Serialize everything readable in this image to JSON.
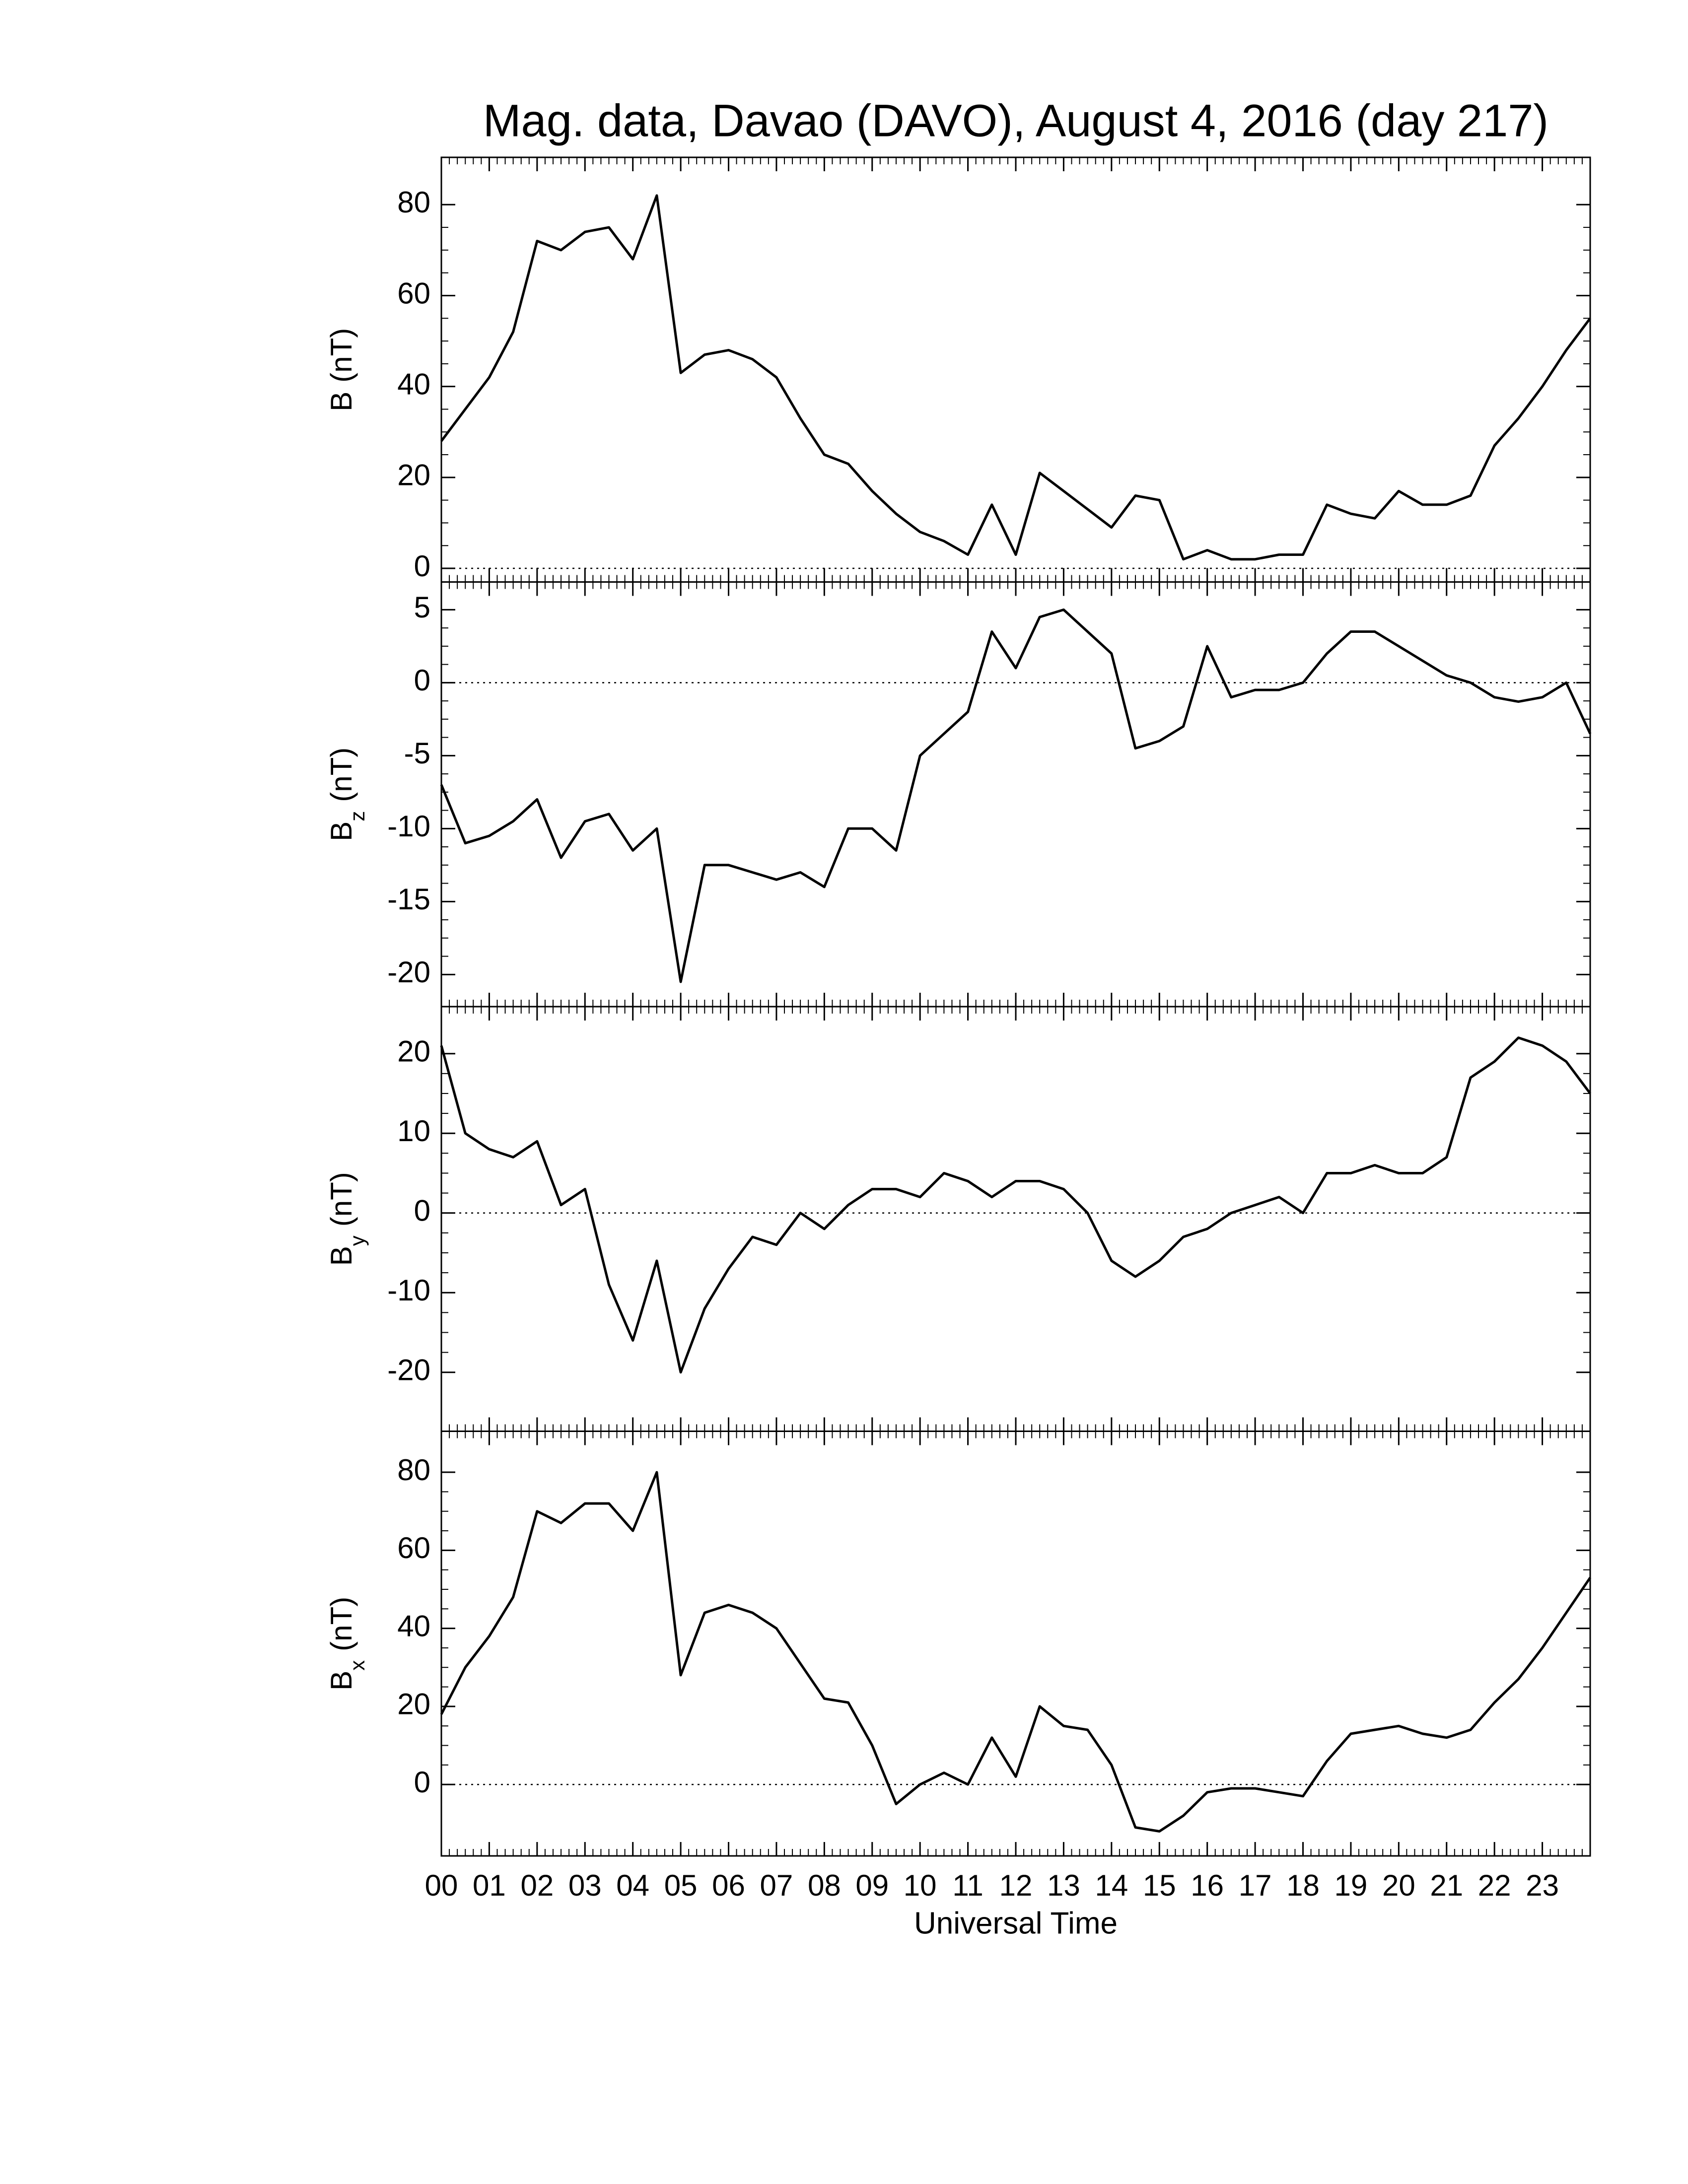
{
  "chart_data": [
    {
      "type": "line",
      "title": "Mag. data, Davao (DAVO), August 4, 2016 (day 217)",
      "ylabel": {
        "symbol": "B",
        "unit": "(nT)"
      },
      "color": "#000000",
      "hline": 0,
      "x": [
        0,
        0.5,
        1,
        1.5,
        2,
        2.5,
        3,
        3.5,
        4,
        4.5,
        5,
        5.5,
        6,
        6.5,
        7,
        7.5,
        8,
        8.5,
        9,
        9.5,
        10,
        10.5,
        11,
        11.5,
        12,
        12.5,
        13,
        13.5,
        14,
        14.5,
        15,
        15.5,
        16,
        16.5,
        17,
        17.5,
        18,
        18.5,
        19,
        19.5,
        20,
        20.5,
        21,
        21.5,
        22,
        22.5,
        23,
        23.5,
        24
      ],
      "values": [
        28,
        35,
        42,
        52,
        72,
        70,
        74,
        75,
        68,
        82,
        43,
        47,
        48,
        46,
        42,
        33,
        25,
        23,
        17,
        12,
        8,
        6,
        3,
        14,
        3,
        21,
        17,
        13,
        9,
        16,
        15,
        2,
        4,
        2,
        2,
        3,
        3,
        14,
        12,
        11,
        17,
        14,
        14,
        16,
        27,
        33,
        40,
        48,
        55
      ],
      "xlim": [
        0,
        24
      ],
      "ylim": [
        -3,
        90.4
      ],
      "yticks": [
        0,
        20,
        40,
        60,
        80
      ]
    },
    {
      "type": "line",
      "ylabel": {
        "symbol": "B",
        "sub": "z",
        "unit": "(nT)"
      },
      "color": "#000000",
      "hline": 0,
      "x": [
        0,
        0.5,
        1,
        1.5,
        2,
        2.5,
        3,
        3.5,
        4,
        4.5,
        5,
        5.5,
        6,
        6.5,
        7,
        7.5,
        8,
        8.5,
        9,
        9.5,
        10,
        10.5,
        11,
        11.5,
        12,
        12.5,
        13,
        13.5,
        14,
        14.5,
        15,
        15.5,
        16,
        16.5,
        17,
        17.5,
        18,
        18.5,
        19,
        19.5,
        20,
        20.5,
        21,
        21.5,
        22,
        22.5,
        23,
        23.5,
        24
      ],
      "values": [
        -7,
        -11,
        -10.5,
        -9.5,
        -8,
        -12,
        -9.5,
        -9,
        -11.5,
        -10,
        -20.5,
        -12.5,
        -12.5,
        -13,
        -13.5,
        -13,
        -14,
        -10,
        -10,
        -11.5,
        -5,
        -3.5,
        -2,
        3.5,
        1,
        4.5,
        5,
        3.5,
        2,
        -4.5,
        -4,
        -3,
        2.5,
        -1,
        -0.5,
        -0.5,
        0,
        2,
        3.5,
        3.5,
        2.5,
        1.5,
        0.5,
        0,
        -1,
        -1.3,
        -1,
        0,
        -3.5
      ],
      "xlim": [
        0,
        24
      ],
      "ylim": [
        -22.2,
        6.9
      ],
      "yticks": [
        -20,
        -15,
        -10,
        -5,
        0,
        5
      ]
    },
    {
      "type": "line",
      "ylabel": {
        "symbol": "B",
        "sub": "y",
        "unit": "(nT)"
      },
      "color": "#000000",
      "hline": 0,
      "x": [
        0,
        0.5,
        1,
        1.5,
        2,
        2.5,
        3,
        3.5,
        4,
        4.5,
        5,
        5.5,
        6,
        6.5,
        7,
        7.5,
        8,
        8.5,
        9,
        9.5,
        10,
        10.5,
        11,
        11.5,
        12,
        12.5,
        13,
        13.5,
        14,
        14.5,
        15,
        15.5,
        16,
        16.5,
        17,
        17.5,
        18,
        18.5,
        19,
        19.5,
        20,
        20.5,
        21,
        21.5,
        22,
        22.5,
        23,
        23.5,
        24
      ],
      "values": [
        21,
        10,
        8,
        7,
        9,
        1,
        3,
        -9,
        -16,
        -6,
        -20,
        -12,
        -7,
        -3,
        -4,
        0,
        -2,
        1,
        3,
        3,
        2,
        5,
        4,
        2,
        4,
        4,
        3,
        0,
        -6,
        -8,
        -6,
        -3,
        -2,
        0,
        1,
        2,
        0,
        5,
        5,
        6,
        5,
        5,
        7,
        17,
        19,
        22,
        21,
        19,
        15
      ],
      "xlim": [
        0,
        24
      ],
      "ylim": [
        -27.4,
        25.9
      ],
      "yticks": [
        -20,
        -10,
        0,
        10,
        20
      ]
    },
    {
      "type": "line",
      "ylabel": {
        "symbol": "B",
        "sub": "x",
        "unit": "(nT)"
      },
      "color": "#000000",
      "hline": 0,
      "xlabel": "Universal Time",
      "x": [
        0,
        0.5,
        1,
        1.5,
        2,
        2.5,
        3,
        3.5,
        4,
        4.5,
        5,
        5.5,
        6,
        6.5,
        7,
        7.5,
        8,
        8.5,
        9,
        9.5,
        10,
        10.5,
        11,
        11.5,
        12,
        12.5,
        13,
        13.5,
        14,
        14.5,
        15,
        15.5,
        16,
        16.5,
        17,
        17.5,
        18,
        18.5,
        19,
        19.5,
        20,
        20.5,
        21,
        21.5,
        22,
        22.5,
        23,
        23.5,
        24
      ],
      "values": [
        18,
        30,
        38,
        48,
        70,
        67,
        72,
        72,
        65,
        80,
        28,
        44,
        46,
        44,
        40,
        31,
        22,
        21,
        10,
        -5,
        0,
        3,
        0,
        12,
        2,
        20,
        15,
        14,
        5,
        -11,
        -12,
        -8,
        -2,
        -1,
        -1,
        -2,
        -3,
        6,
        13,
        14,
        15,
        13,
        12,
        14,
        21,
        27,
        35,
        44,
        53
      ],
      "xlim": [
        0,
        24
      ],
      "ylim": [
        -18.3,
        90.5
      ],
      "yticks": [
        0,
        20,
        40,
        60,
        80
      ],
      "xticks": [
        {
          "value": 0,
          "label": "00"
        },
        {
          "value": 1,
          "label": "01"
        },
        {
          "value": 2,
          "label": "02"
        },
        {
          "value": 3,
          "label": "03"
        },
        {
          "value": 4,
          "label": "04"
        },
        {
          "value": 5,
          "label": "05"
        },
        {
          "value": 6,
          "label": "06"
        },
        {
          "value": 7,
          "label": "07"
        },
        {
          "value": 8,
          "label": "08"
        },
        {
          "value": 9,
          "label": "09"
        },
        {
          "value": 10,
          "label": "10"
        },
        {
          "value": 11,
          "label": "11"
        },
        {
          "value": 12,
          "label": "12"
        },
        {
          "value": 13,
          "label": "13"
        },
        {
          "value": 14,
          "label": "14"
        },
        {
          "value": 15,
          "label": "15"
        },
        {
          "value": 16,
          "label": "16"
        },
        {
          "value": 17,
          "label": "17"
        },
        {
          "value": 18,
          "label": "18"
        },
        {
          "value": 19,
          "label": "19"
        },
        {
          "value": 20,
          "label": "20"
        },
        {
          "value": 21,
          "label": "21"
        },
        {
          "value": 22,
          "label": "22"
        },
        {
          "value": 23,
          "label": "23"
        }
      ]
    }
  ]
}
